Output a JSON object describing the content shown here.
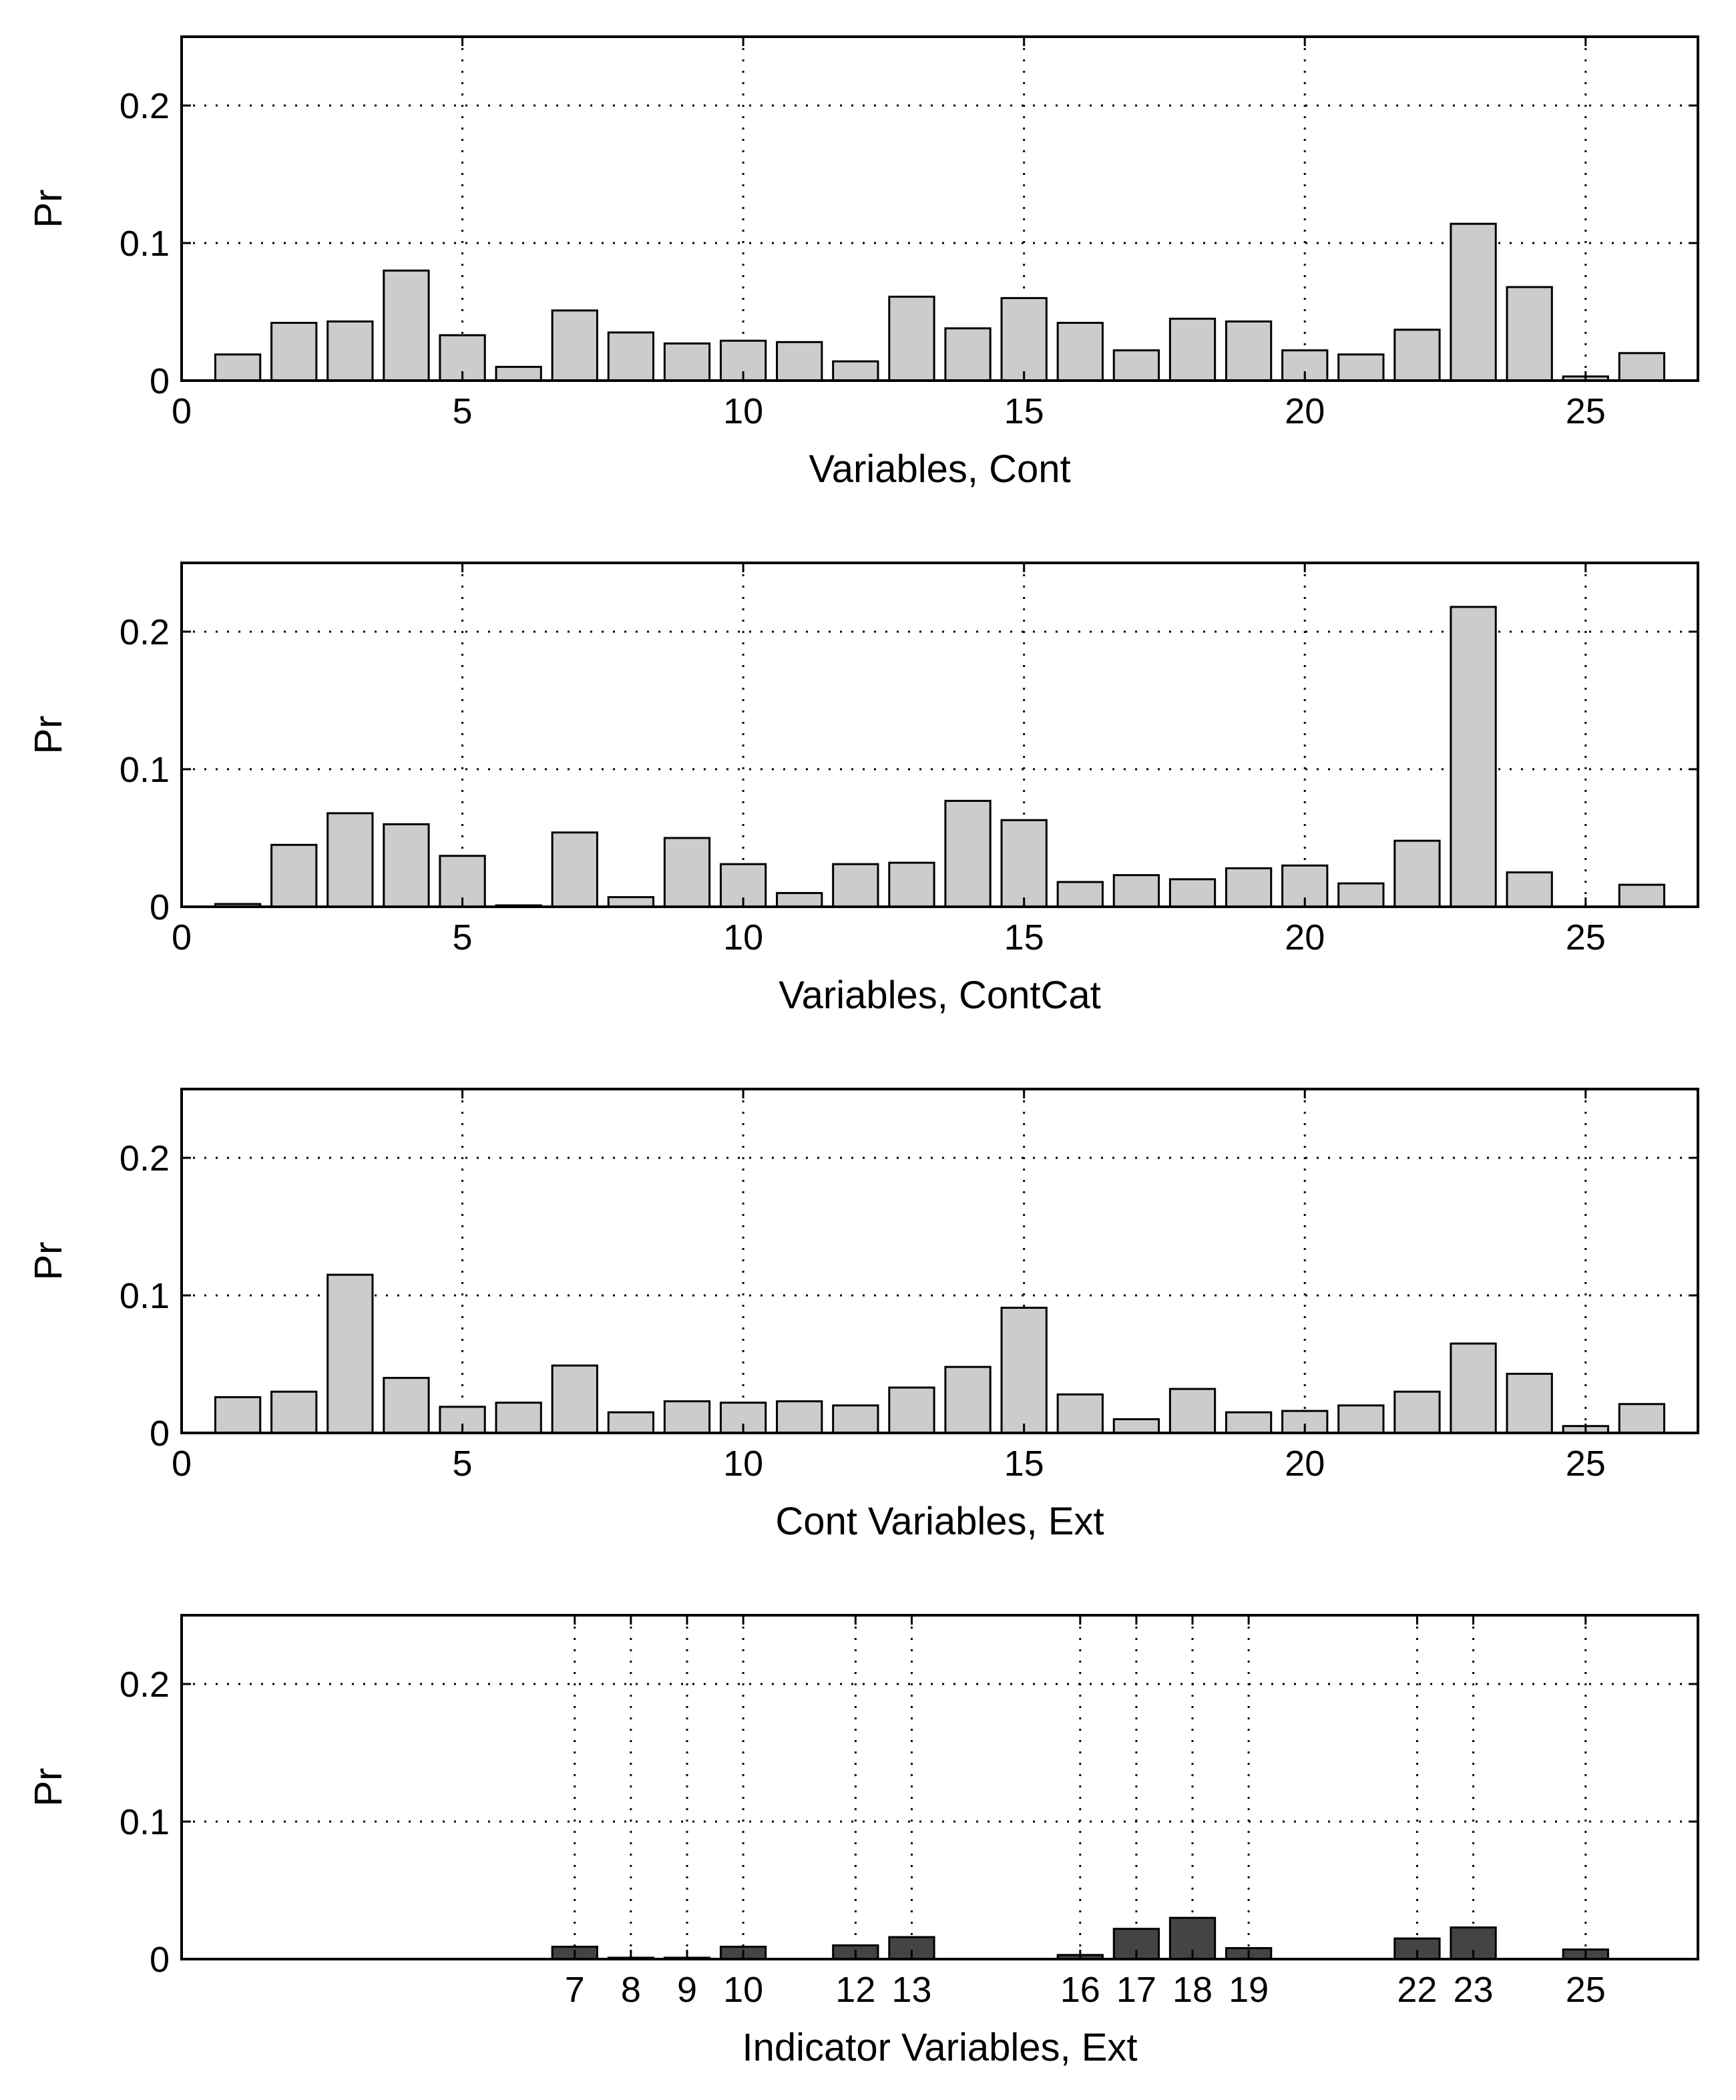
{
  "chart_data": [
    {
      "type": "bar",
      "xlabel": "Variables, Cont",
      "ylabel": "Pr",
      "xlim": [
        0,
        27
      ],
      "ylim": [
        0,
        0.25
      ],
      "grid": true,
      "xticks": [
        0,
        5,
        10,
        15,
        20,
        25
      ],
      "xtick_labels": [
        "0",
        "5",
        "10",
        "15",
        "20",
        "25"
      ],
      "yticks": [
        0,
        0.1,
        0.2
      ],
      "ytick_labels": [
        "0",
        "0.1",
        "0.2"
      ],
      "bar_color": "#cccccc",
      "x": [
        1,
        2,
        3,
        4,
        5,
        6,
        7,
        8,
        9,
        10,
        11,
        12,
        13,
        14,
        15,
        16,
        17,
        18,
        19,
        20,
        21,
        22,
        23,
        24,
        25,
        26
      ],
      "values": [
        0.019,
        0.042,
        0.043,
        0.08,
        0.033,
        0.01,
        0.051,
        0.035,
        0.027,
        0.029,
        0.028,
        0.014,
        0.061,
        0.038,
        0.06,
        0.042,
        0.022,
        0.045,
        0.043,
        0.022,
        0.019,
        0.037,
        0.114,
        0.068,
        0.003,
        0.02
      ]
    },
    {
      "type": "bar",
      "xlabel": "Variables, ContCat",
      "ylabel": "Pr",
      "xlim": [
        0,
        27
      ],
      "ylim": [
        0,
        0.25
      ],
      "grid": true,
      "xticks": [
        0,
        5,
        10,
        15,
        20,
        25
      ],
      "xtick_labels": [
        "0",
        "5",
        "10",
        "15",
        "20",
        "25"
      ],
      "yticks": [
        0,
        0.1,
        0.2
      ],
      "ytick_labels": [
        "0",
        "0.1",
        "0.2"
      ],
      "bar_color": "#cccccc",
      "x": [
        1,
        2,
        3,
        4,
        5,
        6,
        7,
        8,
        9,
        10,
        11,
        12,
        13,
        14,
        15,
        16,
        17,
        18,
        19,
        20,
        21,
        22,
        23,
        24,
        25,
        26
      ],
      "values": [
        0.002,
        0.045,
        0.068,
        0.06,
        0.037,
        0.001,
        0.054,
        0.007,
        0.05,
        0.031,
        0.01,
        0.031,
        0.032,
        0.077,
        0.063,
        0.018,
        0.023,
        0.02,
        0.028,
        0.03,
        0.017,
        0.048,
        0.218,
        0.025,
        0,
        0.016
      ]
    },
    {
      "type": "bar",
      "xlabel": "Cont Variables, Ext",
      "ylabel": "Pr",
      "xlim": [
        0,
        27
      ],
      "ylim": [
        0,
        0.25
      ],
      "grid": true,
      "xticks": [
        0,
        5,
        10,
        15,
        20,
        25
      ],
      "xtick_labels": [
        "0",
        "5",
        "10",
        "15",
        "20",
        "25"
      ],
      "yticks": [
        0,
        0.1,
        0.2
      ],
      "ytick_labels": [
        "0",
        "0.1",
        "0.2"
      ],
      "bar_color": "#cccccc",
      "x": [
        1,
        2,
        3,
        4,
        5,
        6,
        7,
        8,
        9,
        10,
        11,
        12,
        13,
        14,
        15,
        16,
        17,
        18,
        19,
        20,
        21,
        22,
        23,
        24,
        25,
        26
      ],
      "values": [
        0.026,
        0.03,
        0.115,
        0.04,
        0.019,
        0.022,
        0.049,
        0.015,
        0.023,
        0.022,
        0.023,
        0.02,
        0.033,
        0.048,
        0.091,
        0.028,
        0.01,
        0.032,
        0.015,
        0.016,
        0.02,
        0.03,
        0.065,
        0.043,
        0.005,
        0.021
      ]
    },
    {
      "type": "bar",
      "xlabel": "Indicator Variables, Ext",
      "ylabel": "Pr",
      "xlim": [
        0,
        27
      ],
      "ylim": [
        0,
        0.25
      ],
      "grid": true,
      "xticks": [
        7,
        8,
        9,
        10,
        12,
        13,
        16,
        17,
        18,
        19,
        22,
        23,
        25
      ],
      "xtick_labels": [
        "7",
        "8",
        "9",
        "10",
        "12",
        "13",
        "16",
        "17",
        "18",
        "19",
        "22",
        "23",
        "25"
      ],
      "yticks": [
        0,
        0.1,
        0.2
      ],
      "ytick_labels": [
        "0",
        "0.1",
        "0.2"
      ],
      "bar_color": "#444444",
      "x": [
        7,
        8,
        9,
        10,
        12,
        13,
        16,
        17,
        18,
        19,
        22,
        23,
        25
      ],
      "values": [
        0.009,
        0.001,
        0.001,
        0.009,
        0.01,
        0.016,
        0.003,
        0.022,
        0.03,
        0.008,
        0.015,
        0.023,
        0.007
      ]
    }
  ]
}
